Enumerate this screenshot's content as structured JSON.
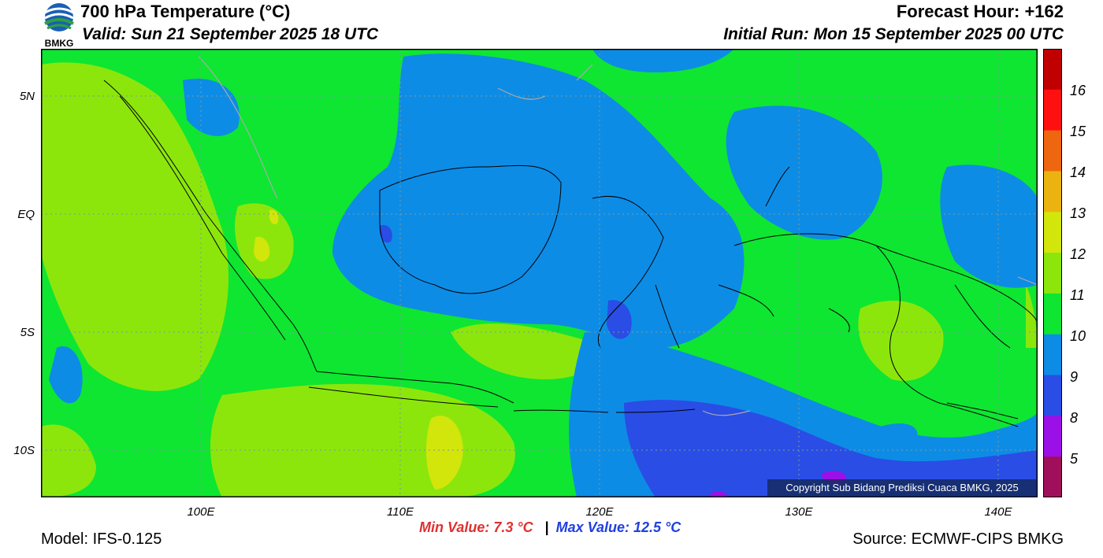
{
  "header": {
    "title": "700 hPa Temperature (°C)",
    "valid": "Valid: Sun 21 September 2025 18 UTC",
    "forecast_hour": "Forecast Hour: +162",
    "initial_run": "Initial Run: Mon 15 September 2025 00 UTC"
  },
  "logo": {
    "text": "BMKG"
  },
  "axes": {
    "lat_labels": [
      "5N",
      "EQ",
      "5S",
      "10S"
    ],
    "lon_labels": [
      "100E",
      "110E",
      "120E",
      "130E",
      "140E"
    ]
  },
  "colorbar": {
    "labels": [
      "16",
      "15",
      "14",
      "13",
      "12",
      "11",
      "10",
      "9",
      "8",
      "5"
    ],
    "colors": [
      "#c00000",
      "#ff1010",
      "#ee6610",
      "#ebb30f",
      "#d2e60b",
      "#8ce60c",
      "#0ee632",
      "#0d8ce6",
      "#2a4de6",
      "#9b10e6",
      "#a0105a"
    ]
  },
  "footer": {
    "copyright": "Copyright Sub Bidang Prediksi Cuaca BMKG, 2025",
    "min_value": "Min Value: 7.3 °C",
    "max_value": "Max Value: 12.5 °C",
    "separator": "|",
    "model": "Model: IFS-0.125",
    "source": "Source: ECMWF-CIPS BMKG"
  }
}
